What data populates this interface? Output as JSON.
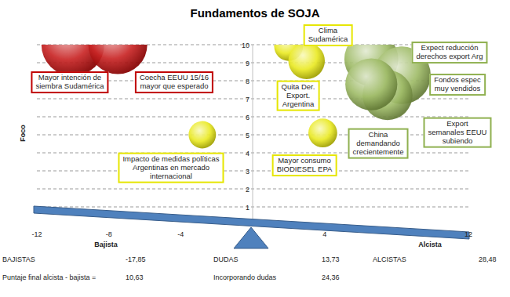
{
  "chart_data": {
    "type": "bubble",
    "title": "Fundamentos de SOJA",
    "ylabel": "Foco",
    "x_label_left": "Bajista",
    "x_label_right": "Alcista",
    "xlim": [
      -12,
      12
    ],
    "xticks": [
      -12,
      -8,
      -4,
      4,
      12
    ],
    "ylim": [
      0,
      10
    ],
    "yticks": [
      1,
      2,
      3,
      4,
      5,
      6,
      7,
      8,
      9,
      10
    ],
    "grid": true,
    "series": [
      {
        "name": "BAJISTAS",
        "color": "#c00000",
        "total": -17.85,
        "total_label": "-17,85",
        "x": [
          -10,
          -7.5
        ],
        "values": [
          10,
          10
        ],
        "size": [
          9.5,
          8.35
        ],
        "labels": [
          "Mayor intención de\nsiembra Sudamérica",
          "Coecha EEUU 15/16\nmayor que esperado"
        ]
      },
      {
        "name": "DUDAS",
        "color": "#e6e600",
        "total": 13.73,
        "total_label": "13,73",
        "x": [
          -2.8,
          2.0,
          3.0,
          3.9
        ],
        "values": [
          5,
          9.9,
          9.1,
          5.1
        ],
        "size": [
          1.8,
          2.0,
          3.2,
          2.0
        ],
        "labels": [
          "Impacto de medidas políticas\nArgentinas en mercado\ninternacional",
          "Clima\nSudamérica",
          "Quita Der.\nExport.\nArgentina",
          "Mayor consumo\nBIODIESEL EPA"
        ]
      },
      {
        "name": "ALCISTAS",
        "color": "#8fb04f",
        "total": 28.48,
        "total_label": "28,48",
        "x": [
          6.6,
          8.3,
          7.5,
          6.6
        ],
        "values": [
          9.2,
          8.3,
          7.2,
          7.8
        ],
        "size": [
          7.0,
          8.0,
          6.0,
          6.5
        ],
        "labels": [
          "Expect reducción\nderechos export Arg",
          "Fondos espec\nmuy vendidos",
          "China\ndemandando\ncrecientemente",
          "Export\nsemanales EEUU\nsubiendo"
        ]
      }
    ],
    "summary": {
      "labels": [
        "Puntaje final alcista - bajista =",
        "Incorporando dudas"
      ],
      "values": [
        10.63,
        24.36
      ],
      "value_labels": [
        "10,63",
        "24,36"
      ]
    }
  }
}
